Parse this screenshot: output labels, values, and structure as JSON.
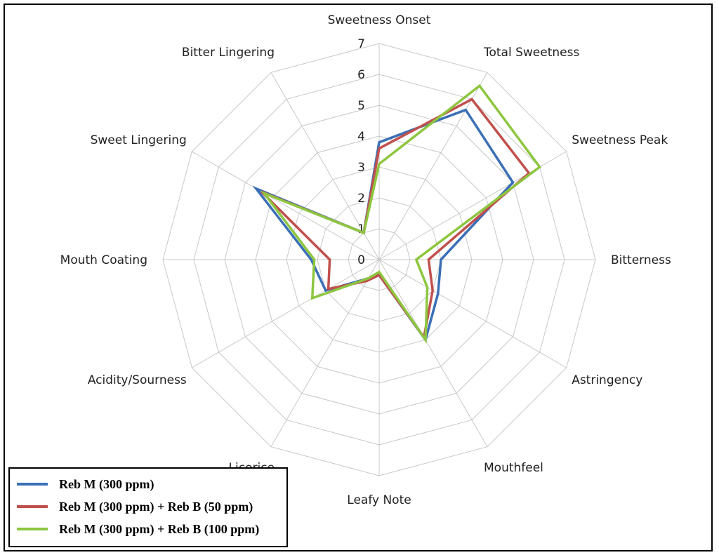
{
  "chart_data": {
    "type": "radar",
    "title": "",
    "axes": [
      "Sweetness Onset",
      "Total Sweetness",
      "Sweetness Peak",
      "Bitterness",
      "Astringency",
      "Mouthfeel",
      "Leafy Note",
      "Licorice",
      "Acidity/Sourness",
      "Mouth Coating",
      "Sweet Lingering",
      "Bitter Lingering"
    ],
    "rlim": [
      0,
      7
    ],
    "ticks": [
      "0",
      "1",
      "2",
      "3",
      "4",
      "5",
      "6",
      "7"
    ],
    "series": [
      {
        "name": "Reb M (300 ppm)",
        "color": "#3b6fb6",
        "values": [
          3.8,
          5.6,
          5.0,
          2.0,
          2.2,
          3.0,
          0.5,
          0.7,
          2.0,
          2.2,
          4.6,
          1.0
        ]
      },
      {
        "name": "Reb M (300 ppm) + Reb B (50 ppm)",
        "color": "#c0504d",
        "values": [
          3.6,
          6.0,
          5.6,
          1.6,
          2.0,
          2.9,
          0.5,
          0.8,
          1.9,
          1.6,
          4.4,
          1.0
        ]
      },
      {
        "name": "Reb M (300 ppm) + Reb B (100 ppm)",
        "color": "#8dc63f",
        "values": [
          3.1,
          6.5,
          6.0,
          1.2,
          1.8,
          3.0,
          0.4,
          0.7,
          2.5,
          2.1,
          4.3,
          1.0
        ]
      }
    ]
  }
}
